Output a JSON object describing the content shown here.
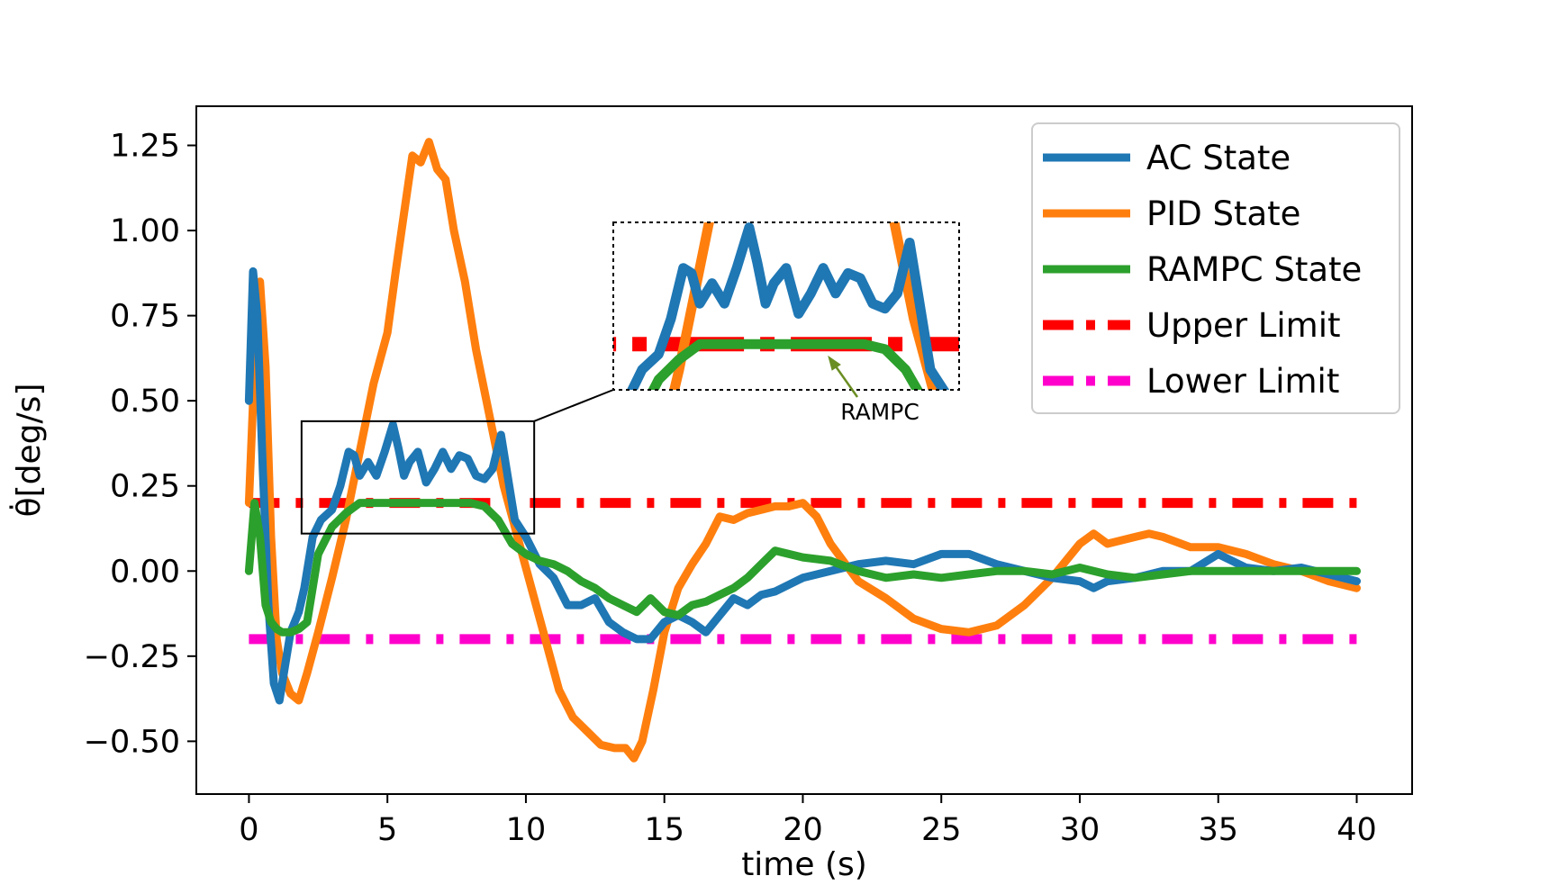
{
  "chart_data": {
    "type": "line",
    "title": "",
    "xlabel": "time (s)",
    "ylabel": "θ̇[deg/s]",
    "xlim": [
      -1.9,
      42.0
    ],
    "ylim": [
      -0.655,
      1.365
    ],
    "x_ticks": [
      0,
      5,
      10,
      15,
      20,
      25,
      30,
      35,
      40
    ],
    "x_tick_labels": [
      "0",
      "5",
      "10",
      "15",
      "20",
      "25",
      "30",
      "35",
      "40"
    ],
    "y_ticks": [
      1.25,
      1.0,
      0.75,
      0.5,
      0.25,
      0.0,
      -0.25,
      -0.5
    ],
    "y_tick_labels": [
      "1.25",
      "1.00",
      "0.75",
      "0.50",
      "0.25",
      "0.00",
      "−0.25",
      "−0.50"
    ],
    "grid": false,
    "legend_position": "top-right",
    "series": [
      {
        "name": "AC State",
        "color": "#1f77b4",
        "style": "solid",
        "x": [
          0,
          0.15,
          0.3,
          0.5,
          0.7,
          0.9,
          1.1,
          1.3,
          1.5,
          1.8,
          2.0,
          2.3,
          2.6,
          3.0,
          3.3,
          3.6,
          3.8,
          4.0,
          4.3,
          4.6,
          4.9,
          5.2,
          5.4,
          5.6,
          5.8,
          6.1,
          6.4,
          6.7,
          7.0,
          7.3,
          7.6,
          7.9,
          8.2,
          8.5,
          8.8,
          9.1,
          9.3,
          9.6,
          10.0,
          10.5,
          11.0,
          11.5,
          12.0,
          12.5,
          13.0,
          13.5,
          14.0,
          14.5,
          15.0,
          15.5,
          16.0,
          16.5,
          17.0,
          17.5,
          18.0,
          18.5,
          19.0,
          19.5,
          20.0,
          21.0,
          22.0,
          23.0,
          24.0,
          25.0,
          26.0,
          27.0,
          28.0,
          29.0,
          30.0,
          30.5,
          31.0,
          32.0,
          33.0,
          34.0,
          35.0,
          36.0,
          37.0,
          38.0,
          39.0,
          40.0
        ],
        "y": [
          0.5,
          0.88,
          0.75,
          0.3,
          -0.1,
          -0.33,
          -0.38,
          -0.28,
          -0.18,
          -0.12,
          -0.05,
          0.1,
          0.15,
          0.18,
          0.25,
          0.35,
          0.34,
          0.28,
          0.32,
          0.28,
          0.35,
          0.43,
          0.36,
          0.28,
          0.32,
          0.35,
          0.26,
          0.3,
          0.35,
          0.3,
          0.34,
          0.33,
          0.28,
          0.27,
          0.3,
          0.4,
          0.3,
          0.15,
          0.1,
          0.02,
          -0.02,
          -0.1,
          -0.1,
          -0.08,
          -0.15,
          -0.18,
          -0.2,
          -0.2,
          -0.15,
          -0.13,
          -0.15,
          -0.18,
          -0.13,
          -0.08,
          -0.1,
          -0.07,
          -0.06,
          -0.04,
          -0.02,
          0.0,
          0.02,
          0.03,
          0.02,
          0.05,
          0.05,
          0.02,
          0.0,
          -0.02,
          -0.03,
          -0.05,
          -0.03,
          -0.02,
          0.0,
          0.0,
          0.05,
          0.01,
          0.0,
          0.01,
          -0.01,
          -0.03
        ]
      },
      {
        "name": "PID State",
        "color": "#ff7f0e",
        "style": "solid",
        "x": [
          0,
          0.2,
          0.4,
          0.6,
          0.8,
          1.0,
          1.2,
          1.5,
          1.8,
          2.1,
          2.5,
          3.0,
          3.5,
          4.0,
          4.5,
          5.0,
          5.3,
          5.6,
          5.9,
          6.2,
          6.5,
          6.8,
          7.1,
          7.4,
          7.8,
          8.2,
          8.7,
          9.2,
          9.7,
          10.2,
          10.7,
          11.2,
          11.7,
          12.2,
          12.7,
          13.2,
          13.6,
          13.9,
          14.2,
          14.6,
          15.0,
          15.5,
          16.0,
          16.5,
          17.0,
          17.5,
          18.0,
          18.5,
          19.0,
          19.5,
          20.0,
          20.5,
          21.0,
          22.0,
          23.0,
          24.0,
          25.0,
          26.0,
          27.0,
          28.0,
          29.0,
          29.5,
          30.0,
          30.5,
          31.0,
          32.0,
          32.5,
          33.0,
          34.0,
          35.0,
          36.0,
          37.0,
          38.0,
          39.0,
          40.0
        ],
        "y": [
          0.2,
          0.6,
          0.85,
          0.6,
          0.1,
          -0.2,
          -0.3,
          -0.36,
          -0.38,
          -0.3,
          -0.18,
          -0.02,
          0.15,
          0.35,
          0.55,
          0.7,
          0.88,
          1.05,
          1.22,
          1.2,
          1.26,
          1.18,
          1.15,
          1.0,
          0.85,
          0.65,
          0.45,
          0.25,
          0.1,
          -0.05,
          -0.2,
          -0.35,
          -0.43,
          -0.47,
          -0.51,
          -0.52,
          -0.52,
          -0.55,
          -0.5,
          -0.35,
          -0.18,
          -0.05,
          0.02,
          0.08,
          0.16,
          0.15,
          0.17,
          0.18,
          0.19,
          0.19,
          0.2,
          0.16,
          0.08,
          -0.03,
          -0.08,
          -0.14,
          -0.17,
          -0.18,
          -0.16,
          -0.1,
          -0.02,
          0.03,
          0.08,
          0.11,
          0.08,
          0.1,
          0.11,
          0.1,
          0.07,
          0.07,
          0.05,
          0.02,
          0.0,
          -0.03,
          -0.05
        ]
      },
      {
        "name": "RAMPC State",
        "color": "#2ca02c",
        "style": "solid",
        "x": [
          0,
          0.2,
          0.4,
          0.6,
          0.8,
          1.0,
          1.2,
          1.5,
          1.8,
          2.1,
          2.5,
          3.0,
          3.5,
          4.0,
          4.5,
          5.0,
          5.5,
          6.0,
          6.5,
          7.0,
          7.5,
          8.0,
          8.5,
          9.0,
          9.5,
          10.0,
          10.5,
          11.0,
          11.5,
          12.0,
          12.5,
          13.0,
          13.5,
          14.0,
          14.5,
          15.0,
          15.5,
          16.0,
          16.5,
          17.0,
          17.5,
          18.0,
          18.5,
          19.0,
          19.5,
          20.0,
          21.0,
          22.0,
          23.0,
          24.0,
          25.0,
          26.0,
          27.0,
          28.0,
          29.0,
          30.0,
          31.0,
          32.0,
          33.0,
          34.0,
          35.0,
          36.0,
          37.0,
          38.0,
          39.0,
          40.0
        ],
        "y": [
          0.0,
          0.2,
          0.1,
          -0.1,
          -0.15,
          -0.17,
          -0.18,
          -0.18,
          -0.17,
          -0.15,
          0.05,
          0.13,
          0.17,
          0.2,
          0.2,
          0.2,
          0.2,
          0.2,
          0.2,
          0.2,
          0.2,
          0.2,
          0.19,
          0.15,
          0.08,
          0.05,
          0.03,
          0.02,
          0.0,
          -0.03,
          -0.05,
          -0.08,
          -0.1,
          -0.12,
          -0.08,
          -0.12,
          -0.13,
          -0.1,
          -0.09,
          -0.07,
          -0.05,
          -0.02,
          0.02,
          0.06,
          0.05,
          0.04,
          0.03,
          0.0,
          -0.02,
          -0.01,
          -0.02,
          -0.01,
          0.0,
          0.0,
          -0.01,
          0.01,
          -0.01,
          -0.02,
          -0.01,
          0.0,
          0.0,
          0.0,
          0.0,
          0.0,
          0.0,
          0.0
        ]
      },
      {
        "name": "Upper Limit",
        "color": "#ff0000",
        "style": "dashdot",
        "x": [
          0,
          40
        ],
        "y": [
          0.2,
          0.2
        ]
      },
      {
        "name": "Lower Limit",
        "color": "#ff00cc",
        "style": "dashdot",
        "x": [
          0,
          40
        ],
        "y": [
          -0.2,
          -0.2
        ]
      }
    ],
    "inset": {
      "x_range": [
        1.9,
        10.3
      ],
      "y_range": [
        0.11,
        0.44
      ],
      "annotation": "RAMPC"
    }
  }
}
